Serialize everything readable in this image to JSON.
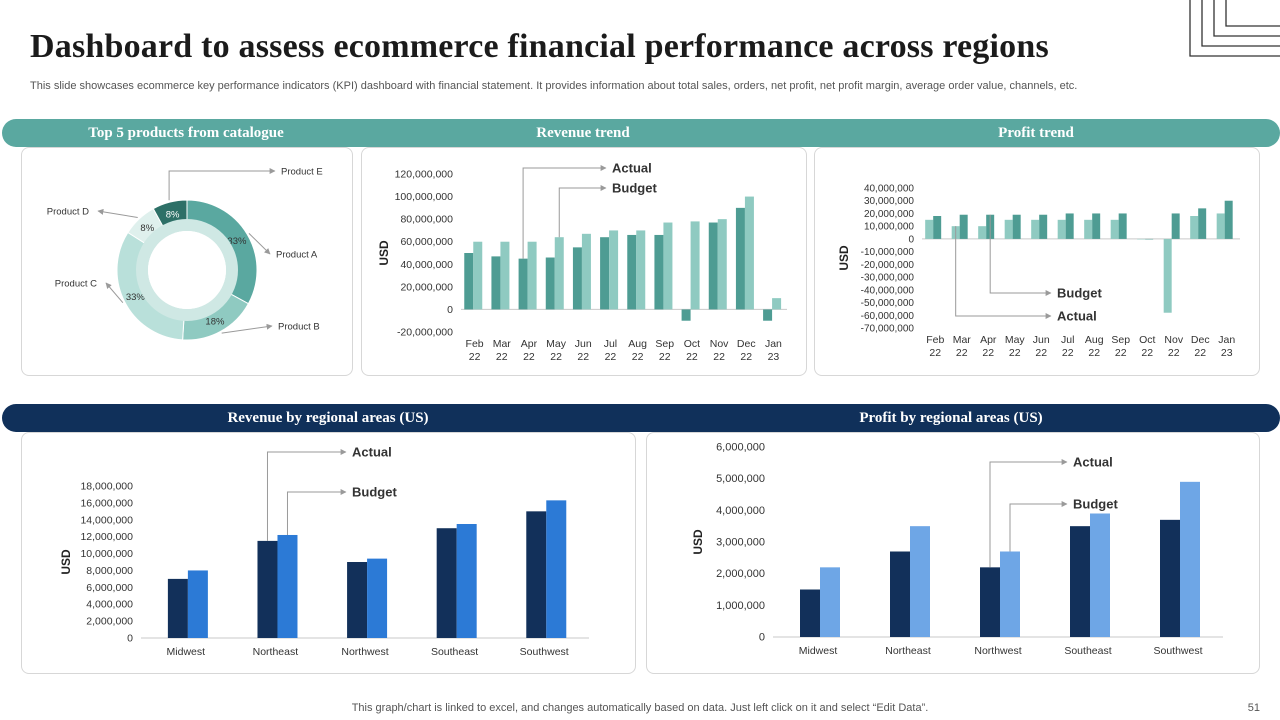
{
  "header": {
    "title": "Dashboard to assess ecommerce financial performance across regions",
    "subtitle": "This slide showcases ecommerce key performance indicators (KPI) dashboard with financial statement. It provides information about total sales, orders, net profit, net profit margin, average order value, channels, etc."
  },
  "sections": {
    "top_products": "Top 5 products  from  catalogue",
    "revenue_trend": "Revenue trend",
    "profit_trend": "Profit  trend",
    "revenue_regional": "Revenue by regional areas (US)",
    "profit_regional": "Profit  by regional areas (US)"
  },
  "footer": {
    "note": "This graph/chart is linked to excel,  and changes automatically based on data. Just left click on it and select “Edit Data”.",
    "page": "51"
  },
  "colors": {
    "teal_band": "#5aa8a0",
    "navy_band": "#10305a",
    "teal_actual": "#4e9c93",
    "teal_budget": "#8fcac1",
    "navy_actual": "#12305a",
    "blue_budget": "#2c7ad6",
    "light_budget": "#6ea6e6"
  },
  "chart_data": [
    {
      "id": "products",
      "type": "pie",
      "style": "donut",
      "slices": [
        {
          "label": "Product A",
          "value": 33,
          "data_label": "33%",
          "color": "#5aa8a0"
        },
        {
          "label": "Product B",
          "value": 18,
          "data_label": "18%",
          "color": "#8fcac1"
        },
        {
          "label": "Product C",
          "value": 33,
          "data_label": "33%",
          "color": "#b9e0da"
        },
        {
          "label": "Product D",
          "value": 8,
          "data_label": "8%",
          "color": "#dff0ed"
        },
        {
          "label": "Product E",
          "value": 8,
          "data_label": "8%",
          "color": "#2d7067"
        }
      ]
    },
    {
      "id": "revenue_trend",
      "type": "bar",
      "categories": [
        "Feb 22",
        "Mar 22",
        "Apr 22",
        "May 22",
        "Jun 22",
        "Jul 22",
        "Aug 22",
        "Sep 22",
        "Oct 22",
        "Nov 22",
        "Dec 22",
        "Jan 23"
      ],
      "series": [
        {
          "name": "Actual",
          "color": "#4e9c93",
          "values": [
            50000000,
            47000000,
            45000000,
            46000000,
            55000000,
            64000000,
            66000000,
            66000000,
            -10000000,
            77000000,
            90000000,
            -10000000
          ]
        },
        {
          "name": "Budget",
          "color": "#8fcac1",
          "values": [
            60000000,
            60000000,
            60000000,
            64000000,
            67000000,
            70000000,
            70000000,
            77000000,
            78000000,
            80000000,
            100000000,
            10000000
          ]
        }
      ],
      "ylabel": "USD",
      "ylim": [
        -20000000,
        120000000
      ],
      "yticks": [
        -20000000,
        0,
        20000000,
        40000000,
        60000000,
        80000000,
        100000000,
        120000000
      ],
      "ytick_labels": [
        "-20,000,000",
        "0",
        "20,000,000",
        "40,000,000",
        "60,000,000",
        "80,000,000",
        "100,000,000",
        "120,000,000"
      ],
      "annotations": [
        "Actual",
        "Budget"
      ]
    },
    {
      "id": "profit_trend",
      "type": "bar",
      "categories": [
        "Feb 22",
        "Mar 22",
        "Apr 22",
        "May 22",
        "Jun 22",
        "Jul 22",
        "Aug 22",
        "Sep 22",
        "Oct 22",
        "Nov 22",
        "Dec 22",
        "Jan 23"
      ],
      "series": [
        {
          "name": "Actual",
          "color": "#8fcac1",
          "values": [
            15000000,
            10000000,
            10000000,
            15000000,
            15000000,
            15000000,
            15000000,
            15000000,
            0,
            -58000000,
            18000000,
            20000000
          ]
        },
        {
          "name": "Budget",
          "color": "#4e9c93",
          "values": [
            18000000,
            19000000,
            19000000,
            19000000,
            19000000,
            20000000,
            20000000,
            20000000,
            0,
            20000000,
            24000000,
            30000000
          ]
        }
      ],
      "ylabel": "USD",
      "ylim": [
        -70000000,
        40000000
      ],
      "yticks": [
        -70000000,
        -60000000,
        -50000000,
        -40000000,
        -30000000,
        -20000000,
        -10000000,
        0,
        10000000,
        20000000,
        30000000,
        40000000
      ],
      "ytick_labels": [
        "-70,000,000",
        "-60,000,000",
        "-50,000,000",
        "-40,000,000",
        "-30,000,000",
        "-20,000,000",
        "-10,000,000",
        "0",
        "10,000,000",
        "20,000,000",
        "30,000,000",
        "40,000,000"
      ],
      "annotations": [
        "Budget",
        "Actual"
      ]
    },
    {
      "id": "revenue_regional",
      "type": "bar",
      "categories": [
        "Midwest",
        "Northeast",
        "Northwest",
        "Southeast",
        "Southwest"
      ],
      "series": [
        {
          "name": "Actual",
          "color": "#12305a",
          "values": [
            7000000,
            11500000,
            9000000,
            13000000,
            15000000
          ]
        },
        {
          "name": "Budget",
          "color": "#2c7ad6",
          "values": [
            8000000,
            12200000,
            9400000,
            13500000,
            16300000
          ]
        }
      ],
      "ylabel": "USD",
      "ylim": [
        0,
        18000000
      ],
      "yticks": [
        0,
        2000000,
        4000000,
        6000000,
        8000000,
        10000000,
        12000000,
        14000000,
        16000000,
        18000000
      ],
      "ytick_labels": [
        "0",
        "2,000,000",
        "4,000,000",
        "6,000,000",
        "8,000,000",
        "10,000,000",
        "12,000,000",
        "14,000,000",
        "16,000,000",
        "18,000,000"
      ],
      "annotations": [
        "Actual",
        "Budget"
      ]
    },
    {
      "id": "profit_regional",
      "type": "bar",
      "categories": [
        "Midwest",
        "Northeast",
        "Northwest",
        "Southeast",
        "Southwest"
      ],
      "series": [
        {
          "name": "Actual",
          "color": "#12305a",
          "values": [
            1500000,
            2700000,
            2200000,
            3500000,
            3700000
          ]
        },
        {
          "name": "Budget",
          "color": "#6ea6e6",
          "values": [
            2200000,
            3500000,
            2700000,
            3900000,
            4900000
          ]
        }
      ],
      "ylabel": "USD",
      "ylim": [
        0,
        6000000
      ],
      "yticks": [
        0,
        1000000,
        2000000,
        3000000,
        4000000,
        5000000,
        6000000
      ],
      "ytick_labels": [
        "0",
        "1,000,000",
        "2,000,000",
        "3,000,000",
        "4,000,000",
        "5,000,000",
        "6,000,000"
      ],
      "annotations": [
        "Actual",
        "Budget"
      ]
    }
  ]
}
